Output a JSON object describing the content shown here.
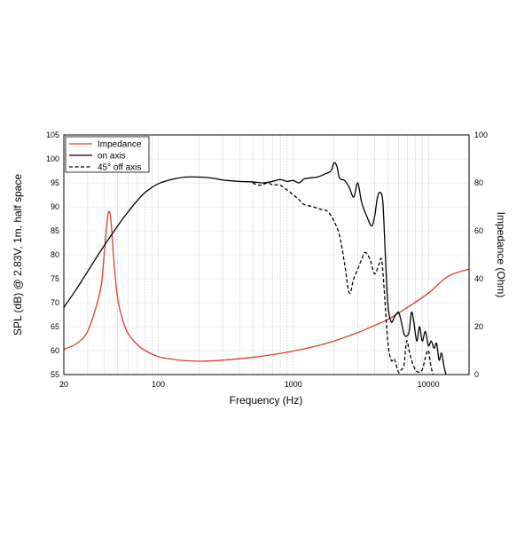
{
  "chart_data": {
    "type": "line",
    "title": "",
    "xlabel": "Frequency (Hz)",
    "ylabel": "SPL (dB) @ 2.83V, 1m, half space",
    "y2label": "Impedance (Ohm)",
    "xscale": "log",
    "xlim": [
      20,
      20000
    ],
    "ylim": [
      55,
      105
    ],
    "y2lim": [
      0,
      100
    ],
    "grid": true,
    "legend_placement": "top-left",
    "x_ticks": [
      "20",
      "100",
      "1000",
      "10000"
    ],
    "y_ticks": [
      "55",
      "60",
      "65",
      "70",
      "75",
      "80",
      "85",
      "90",
      "95",
      "100",
      "105"
    ],
    "y2_ticks": [
      "0",
      "20",
      "40",
      "60",
      "80",
      "100"
    ],
    "series": [
      {
        "name": "Impedance",
        "axis": "right",
        "color": "#d9412b",
        "style": "solid",
        "points": [
          [
            20,
            10.5
          ],
          [
            25,
            13
          ],
          [
            30,
            18
          ],
          [
            35,
            29
          ],
          [
            38,
            38
          ],
          [
            40,
            52
          ],
          [
            42,
            65
          ],
          [
            43,
            68
          ],
          [
            44,
            67
          ],
          [
            45,
            62
          ],
          [
            47,
            47
          ],
          [
            50,
            32
          ],
          [
            55,
            22
          ],
          [
            60,
            17
          ],
          [
            70,
            12.5
          ],
          [
            80,
            10
          ],
          [
            100,
            7.5
          ],
          [
            130,
            6.3
          ],
          [
            160,
            5.8
          ],
          [
            200,
            5.6
          ],
          [
            300,
            6
          ],
          [
            500,
            7.2
          ],
          [
            700,
            8.3
          ],
          [
            1000,
            9.8
          ],
          [
            1500,
            12
          ],
          [
            2000,
            14
          ],
          [
            3000,
            17.5
          ],
          [
            4000,
            20.5
          ],
          [
            5000,
            23
          ],
          [
            7000,
            28
          ],
          [
            10000,
            34
          ],
          [
            14000,
            41
          ],
          [
            20000,
            44
          ]
        ]
      },
      {
        "name": "on axis",
        "axis": "left",
        "color": "#000000",
        "style": "solid",
        "points": [
          [
            20,
            69
          ],
          [
            25,
            73
          ],
          [
            30,
            76.5
          ],
          [
            35,
            79.5
          ],
          [
            40,
            82
          ],
          [
            50,
            86
          ],
          [
            60,
            89
          ],
          [
            70,
            91.3
          ],
          [
            80,
            93
          ],
          [
            100,
            94.8
          ],
          [
            130,
            95.8
          ],
          [
            160,
            96.2
          ],
          [
            200,
            96.2
          ],
          [
            250,
            96
          ],
          [
            300,
            95.6
          ],
          [
            400,
            95.3
          ],
          [
            500,
            95.2
          ],
          [
            600,
            95
          ],
          [
            700,
            95.3
          ],
          [
            800,
            95.7
          ],
          [
            900,
            95.3
          ],
          [
            1000,
            95.5
          ],
          [
            1100,
            95
          ],
          [
            1200,
            95.8
          ],
          [
            1300,
            96
          ],
          [
            1500,
            96.2
          ],
          [
            1700,
            96.8
          ],
          [
            1900,
            97.5
          ],
          [
            2000,
            99.2
          ],
          [
            2100,
            98.5
          ],
          [
            2200,
            96
          ],
          [
            2400,
            95.5
          ],
          [
            2600,
            94
          ],
          [
            2800,
            92
          ],
          [
            3000,
            95
          ],
          [
            3200,
            91
          ],
          [
            3500,
            88
          ],
          [
            3800,
            86
          ],
          [
            4000,
            88
          ],
          [
            4200,
            92
          ],
          [
            4400,
            93
          ],
          [
            4600,
            91
          ],
          [
            4800,
            80
          ],
          [
            5000,
            70
          ],
          [
            5300,
            66
          ],
          [
            5600,
            67
          ],
          [
            6000,
            68
          ],
          [
            6300,
            66
          ],
          [
            6600,
            63.5
          ],
          [
            6900,
            63
          ],
          [
            7200,
            64
          ],
          [
            7500,
            68
          ],
          [
            7800,
            66
          ],
          [
            8200,
            62
          ],
          [
            8600,
            65
          ],
          [
            9000,
            62
          ],
          [
            9500,
            64
          ],
          [
            10000,
            61
          ],
          [
            10500,
            62
          ],
          [
            11000,
            60.5
          ],
          [
            11500,
            61.5
          ],
          [
            12000,
            58
          ],
          [
            12500,
            59.5
          ],
          [
            13000,
            57
          ],
          [
            13500,
            55
          ]
        ]
      },
      {
        "name": "45° off axis",
        "axis": "left",
        "color": "#000000",
        "style": "dashed",
        "points": [
          [
            500,
            95
          ],
          [
            550,
            94.5
          ],
          [
            600,
            94.7
          ],
          [
            650,
            95
          ],
          [
            700,
            94.6
          ],
          [
            800,
            94.5
          ],
          [
            900,
            93.5
          ],
          [
            1000,
            92.5
          ],
          [
            1100,
            91.5
          ],
          [
            1200,
            90.5
          ],
          [
            1400,
            90
          ],
          [
            1600,
            89.5
          ],
          [
            1800,
            89
          ],
          [
            2000,
            87
          ],
          [
            2200,
            84
          ],
          [
            2400,
            78
          ],
          [
            2600,
            72
          ],
          [
            2800,
            75
          ],
          [
            3000,
            77
          ],
          [
            3200,
            79
          ],
          [
            3400,
            80.5
          ],
          [
            3700,
            79
          ],
          [
            4000,
            76
          ],
          [
            4300,
            78
          ],
          [
            4500,
            79
          ],
          [
            4700,
            73
          ],
          [
            5000,
            62
          ],
          [
            5300,
            58
          ],
          [
            5600,
            58.2
          ],
          [
            6000,
            55.5
          ],
          [
            6300,
            56
          ],
          [
            6600,
            57
          ],
          [
            6900,
            62
          ],
          [
            7200,
            60
          ],
          [
            7500,
            58
          ],
          [
            8000,
            56
          ],
          [
            8500,
            55.5
          ],
          [
            9000,
            56
          ],
          [
            9600,
            59
          ],
          [
            10000,
            60
          ],
          [
            10400,
            57
          ],
          [
            10800,
            55
          ]
        ]
      }
    ]
  }
}
